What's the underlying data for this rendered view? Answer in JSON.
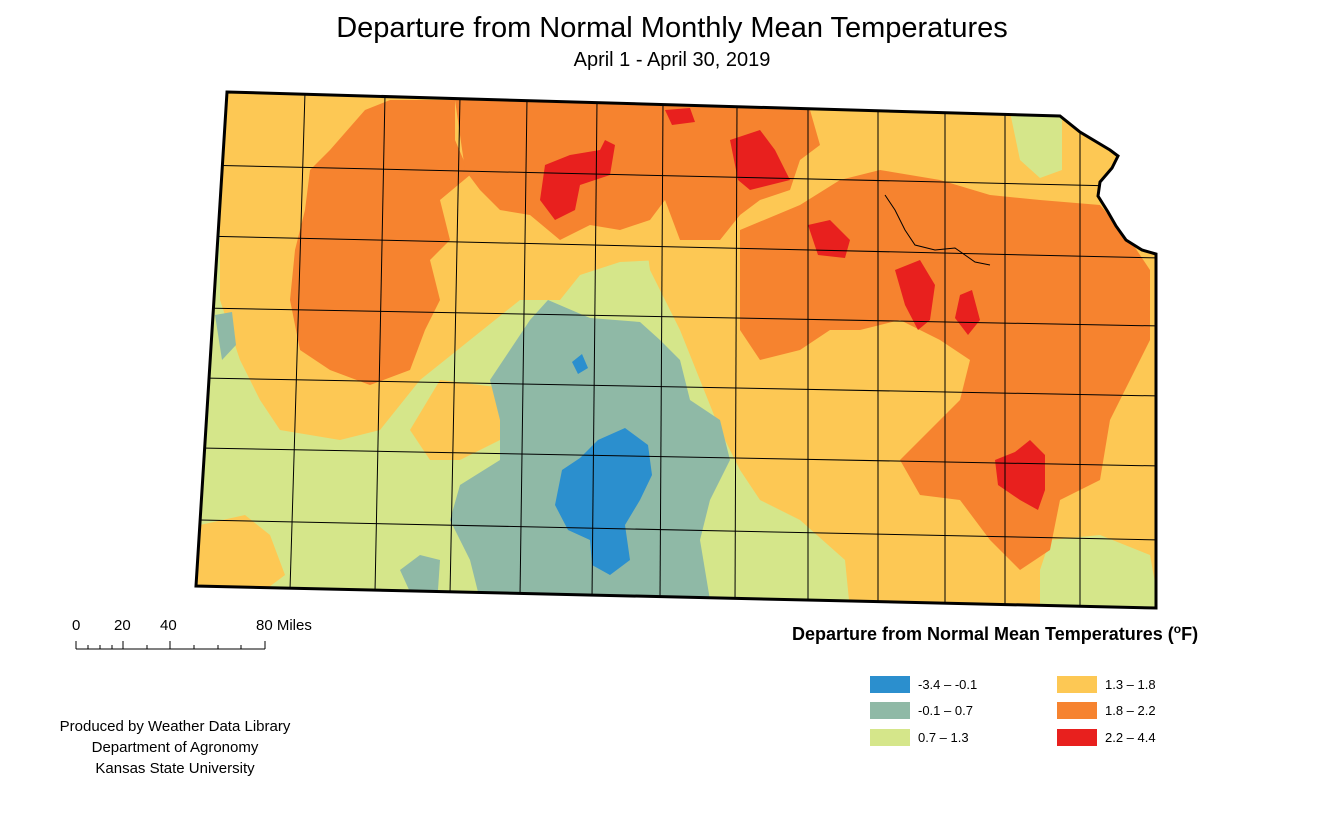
{
  "title": "Departure from Normal Monthly Mean Temperatures",
  "subtitle": "April 1 - April 30, 2019",
  "scale_bar": {
    "labels": [
      "0",
      "20",
      "40",
      "80 Miles"
    ],
    "tick_values": [
      0,
      20,
      40,
      80
    ]
  },
  "legend": {
    "title_main": "Departure from Normal Mean Temperatures (",
    "title_sup": "o",
    "title_tail": "F)",
    "classes": [
      {
        "id": "c1",
        "label": "-3.4 – -0.1",
        "color": "#2b8fce"
      },
      {
        "id": "c2",
        "label": "-0.1 – 0.7",
        "color": "#8fb9a6"
      },
      {
        "id": "c3",
        "label": "0.7 – 1.3",
        "color": "#d5e68a"
      },
      {
        "id": "c4",
        "label": "1.3 – 1.8",
        "color": "#fdc854"
      },
      {
        "id": "c5",
        "label": "1.8 – 2.2",
        "color": "#f6832f"
      },
      {
        "id": "c6",
        "label": "2.2 – 4.4",
        "color": "#e8201e"
      }
    ]
  },
  "credit": {
    "line1": "Produced by Weather Data Library",
    "line2": "Department of Agronomy",
    "line3": "Kansas State University"
  }
}
